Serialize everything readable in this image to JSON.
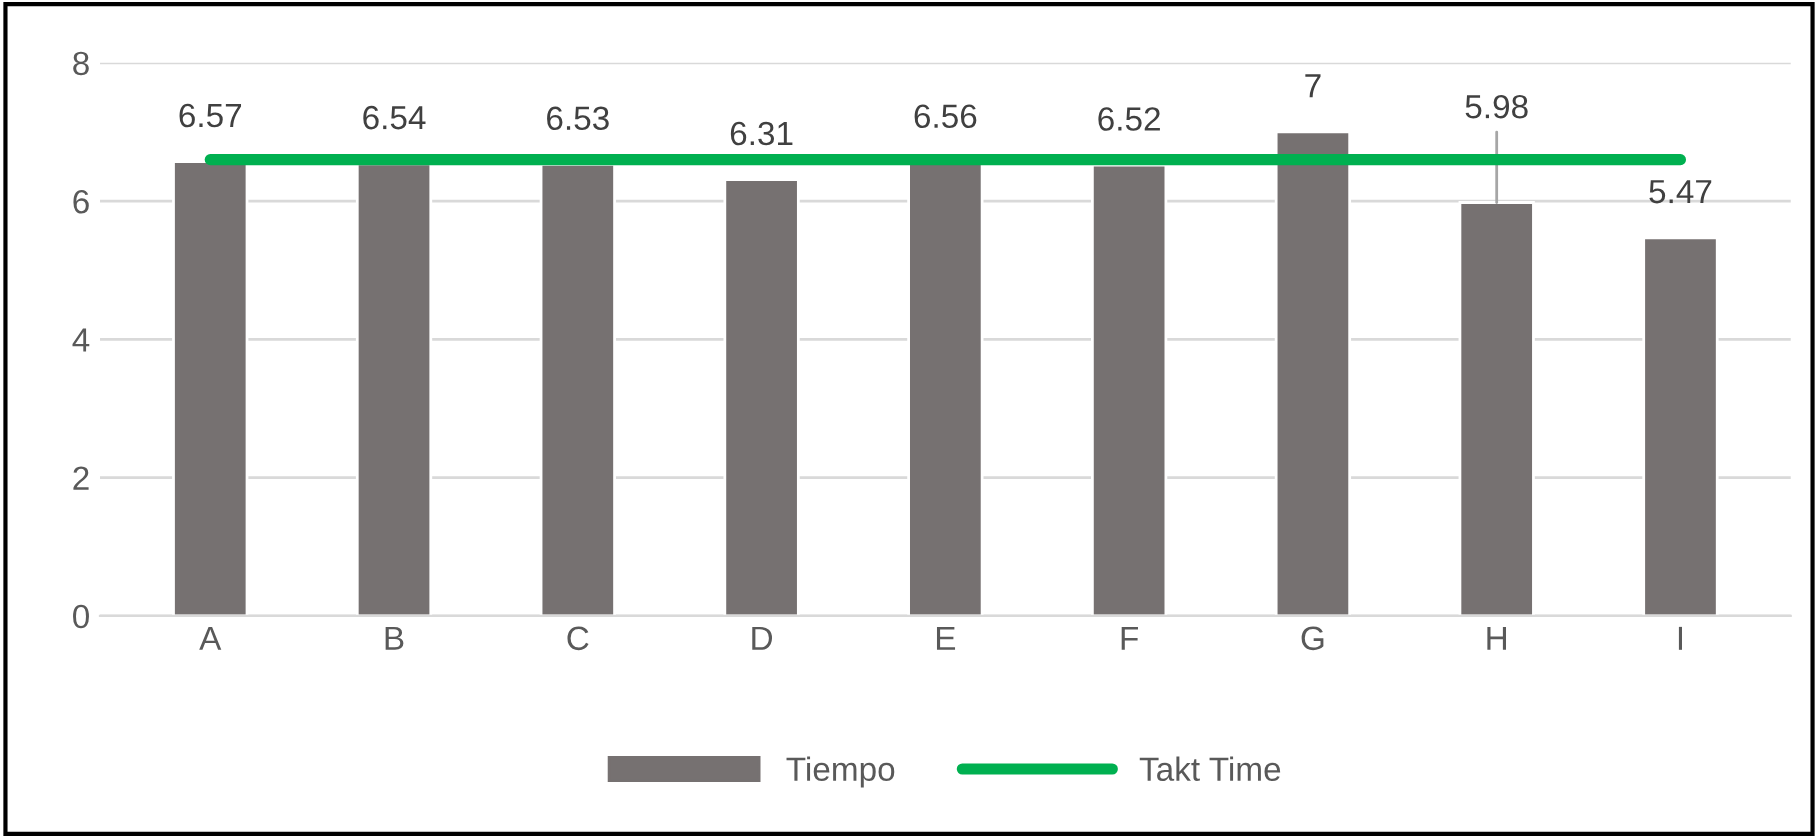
{
  "chart_data": {
    "type": "bar",
    "categories": [
      "A",
      "B",
      "C",
      "D",
      "E",
      "F",
      "G",
      "H",
      "I"
    ],
    "series": [
      {
        "name": "Tiempo",
        "color": "#767171",
        "values": [
          6.57,
          6.54,
          6.53,
          6.31,
          6.56,
          6.52,
          7,
          5.98,
          5.47
        ],
        "value_labels": [
          "6.57",
          "6.54",
          "6.53",
          "6.31",
          "6.56",
          "6.52",
          "7",
          "5.98",
          "5.47"
        ]
      },
      {
        "name": "Takt Time",
        "type": "line",
        "color": "#00b050",
        "values": [
          6.6,
          6.6,
          6.6,
          6.6,
          6.6,
          6.6,
          6.6,
          6.6,
          6.6
        ]
      }
    ],
    "ylim": [
      0,
      8
    ],
    "yticks": [
      0,
      2,
      4,
      6,
      8
    ],
    "grid": "y",
    "legend": "bottom",
    "marker": "none",
    "line_style": "solid"
  }
}
